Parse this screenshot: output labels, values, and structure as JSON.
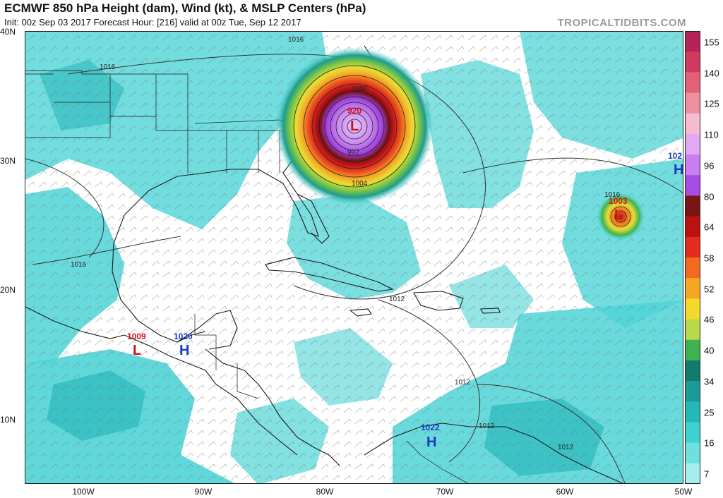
{
  "header": {
    "title": "ECMWF 850 hPa Height (dam), Wind (kt), & MSLP Centers (hPa)",
    "init": "Init: 00z Sep 03 2017   Forecast Hour: [216]   valid at 00z Tue, Sep 12 2017",
    "brand": "TROPICALTIDBITS.COM"
  },
  "axes": {
    "lat_labels": [
      "40N",
      "30N",
      "20N",
      "10N"
    ],
    "lon_labels": [
      "100W",
      "90W",
      "80W",
      "70W",
      "60W",
      "50W"
    ]
  },
  "colorbar": {
    "labels": [
      "155",
      "140",
      "125",
      "110",
      "96",
      "80",
      "64",
      "58",
      "52",
      "46",
      "40",
      "34",
      "25",
      "16",
      "7"
    ],
    "colors": [
      "#b4245a",
      "#d03a5e",
      "#e26078",
      "#ee8fa0",
      "#f5bcd0",
      "#e2a8f4",
      "#c77ef0",
      "#a64de6",
      "#7a1515",
      "#bb1111",
      "#e42b1f",
      "#f26a1d",
      "#f6a623",
      "#f4d92c",
      "#b7d94a",
      "#3fb34f",
      "#137a6e",
      "#1b9a9a",
      "#23b9b9",
      "#3fd0d0",
      "#6ee0e0",
      "#a6eeee"
    ]
  },
  "pressure_centers": [
    {
      "type": "L",
      "value": "920",
      "color": "#d1101c"
    },
    {
      "type": "L",
      "value": "1003",
      "color": "#d1101c"
    },
    {
      "type": "L",
      "value": "1009",
      "color": "#d1101c"
    },
    {
      "type": "H",
      "value": "1020",
      "color": "#1739c8"
    },
    {
      "type": "H",
      "value": "1022",
      "color": "#1739c8"
    },
    {
      "type": "H",
      "value": "102",
      "color": "#1739c8"
    }
  ],
  "isobar_labels": [
    "1016",
    "1016",
    "1016",
    "1016",
    "1004",
    "1012",
    "1012",
    "1012",
    "1012",
    "1000",
    "992"
  ]
}
